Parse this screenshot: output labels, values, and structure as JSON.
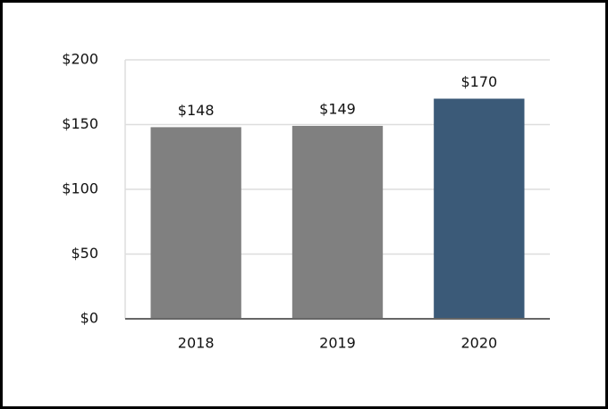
{
  "chart_data": {
    "type": "bar",
    "categories": [
      "2018",
      "2019",
      "2020"
    ],
    "values": [
      148,
      149,
      170
    ],
    "value_labels": [
      "$148",
      "$149",
      "$170"
    ],
    "colors": [
      "#808080",
      "#808080",
      "#3b5a78"
    ],
    "ylim": [
      0,
      200
    ],
    "yticks": [
      {
        "value": 0,
        "label": "$0"
      },
      {
        "value": 50,
        "label": "$50"
      },
      {
        "value": 100,
        "label": "$100"
      },
      {
        "value": 150,
        "label": "$150"
      },
      {
        "value": 200,
        "label": "$200"
      }
    ],
    "grid": true
  }
}
